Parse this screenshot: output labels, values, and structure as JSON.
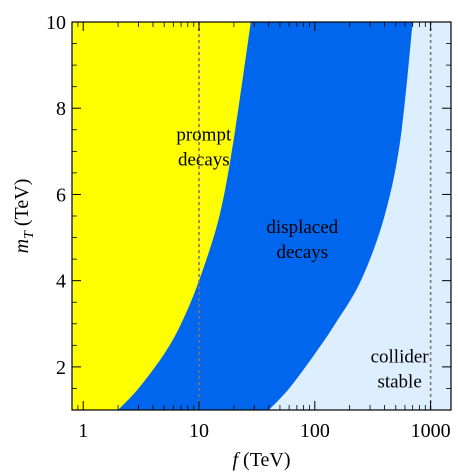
{
  "chart_data": {
    "type": "area",
    "x_scale": "log",
    "xlim": [
      0.8,
      1500
    ],
    "ylim": [
      1,
      10
    ],
    "xlabel_var": "f",
    "xlabel_unit": " (TeV)",
    "ylabel_var": "m",
    "ylabel_sub": "T",
    "ylabel_unit": " (TeV)",
    "x_ticks": [
      {
        "value": 1,
        "label": "1"
      },
      {
        "value": 10,
        "label": "10"
      },
      {
        "value": 100,
        "label": "100"
      },
      {
        "value": 1000,
        "label": "1000"
      }
    ],
    "y_ticks": [
      {
        "value": 2,
        "label": "2"
      },
      {
        "value": 4,
        "label": "4"
      },
      {
        "value": 6,
        "label": "6"
      },
      {
        "value": 8,
        "label": "8"
      },
      {
        "value": 10,
        "label": "10"
      }
    ],
    "reference_lines_x": [
      10,
      1000
    ],
    "regions": [
      {
        "name": "prompt",
        "label_lines": [
          "prompt",
          "decays"
        ],
        "label_pos": [
          11,
          7.1
        ],
        "color": "#ffff00",
        "boundary_f": [
          2,
          3,
          5,
          7,
          10,
          15,
          20,
          28
        ]
      },
      {
        "name": "displaced",
        "label_lines": [
          "displaced",
          "decays"
        ],
        "label_pos": [
          78,
          4.95
        ],
        "color": "#0066ee",
        "boundary_f": [
          40,
          60,
          100,
          150,
          250,
          400,
          550,
          700
        ]
      },
      {
        "name": "collider-stable",
        "label_lines": [
          "collider",
          "stable"
        ],
        "label_pos": [
          540,
          1.95
        ],
        "color": "#ddeeff"
      }
    ],
    "boundary_mT": [
      1,
      1.5,
      2.3,
      3,
      4,
      5.5,
      7.3,
      10
    ]
  }
}
